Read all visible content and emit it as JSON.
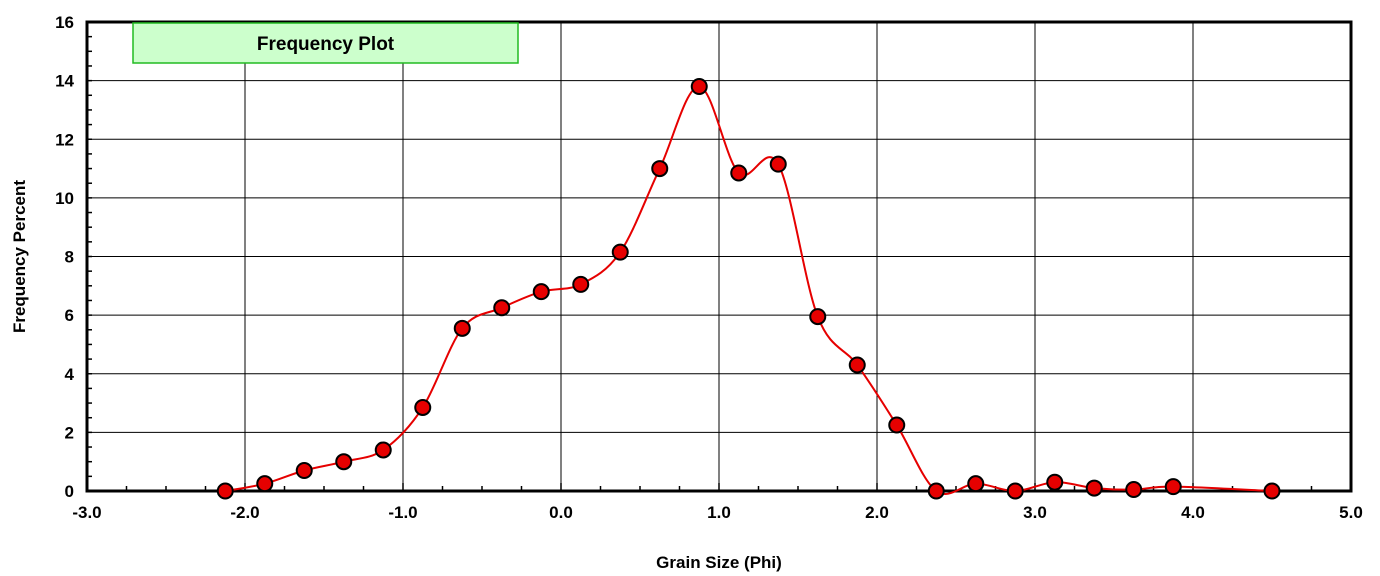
{
  "chart_data": {
    "type": "line",
    "title": "Frequency Plot",
    "xlabel": "Grain Size (Phi)",
    "ylabel": "Frequency Percent",
    "xlim": [
      -3.0,
      5.0
    ],
    "ylim": [
      0,
      16
    ],
    "x_ticks": [
      -3.0,
      -2.0,
      -1.0,
      0.0,
      1.0,
      2.0,
      3.0,
      4.0,
      5.0
    ],
    "x_tick_labels": [
      "-3.0",
      "-2.0",
      "-1.0",
      "0.0",
      "1.0",
      "2.0",
      "3.0",
      "4.0",
      "5.0"
    ],
    "y_ticks": [
      0,
      2,
      4,
      6,
      8,
      10,
      12,
      14,
      16
    ],
    "y_tick_labels": [
      "0",
      "2",
      "4",
      "6",
      "8",
      "10",
      "12",
      "14",
      "16"
    ],
    "grid": true,
    "line_color": "#e60000",
    "marker_color": "#e60000",
    "title_box_color": "#ccffcc",
    "series": [
      {
        "x": [
          -2.125,
          -1.875,
          -1.625,
          -1.375,
          -1.125,
          -0.875,
          -0.625,
          -0.375,
          -0.125,
          0.125,
          0.375,
          0.625,
          0.875,
          1.125,
          1.375,
          1.625,
          1.875,
          2.125,
          2.375,
          2.625,
          2.875,
          3.125,
          3.375,
          3.625,
          3.875,
          4.5
        ],
        "y": [
          0.0,
          0.25,
          0.7,
          1.0,
          1.4,
          2.85,
          5.55,
          6.25,
          6.8,
          7.05,
          8.15,
          11.0,
          13.8,
          10.85,
          11.15,
          5.95,
          4.3,
          2.25,
          0.0,
          0.25,
          0.0,
          0.3,
          0.1,
          0.05,
          0.15,
          0.0
        ]
      }
    ]
  }
}
